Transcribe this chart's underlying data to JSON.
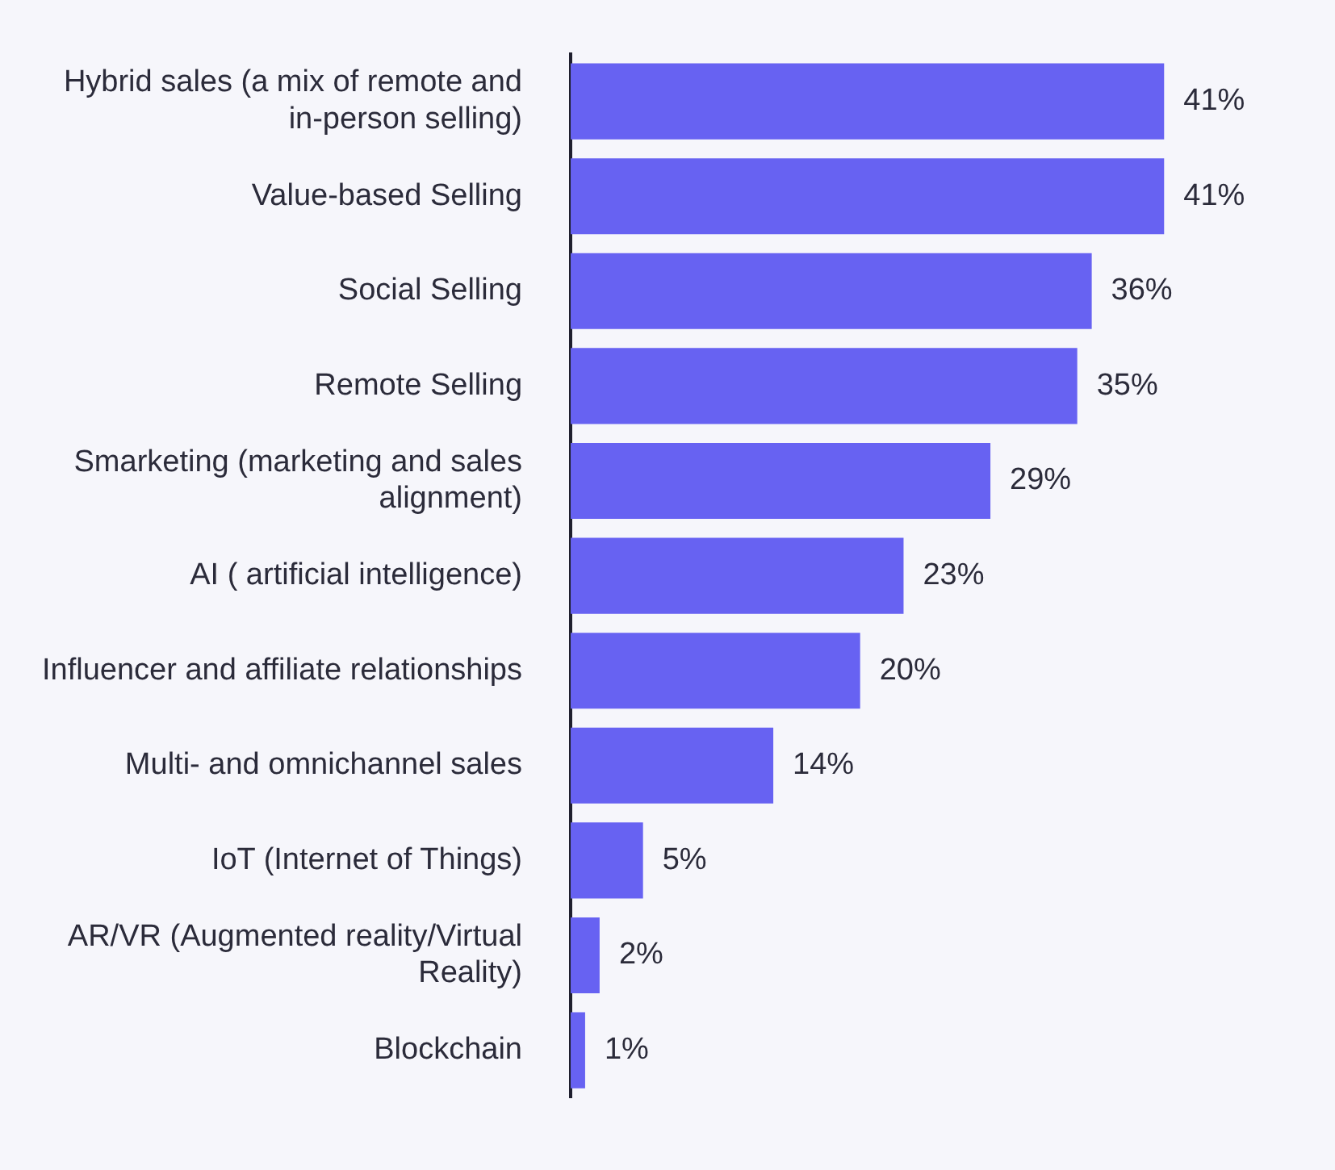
{
  "chart_data": {
    "type": "bar",
    "orientation": "horizontal",
    "categories": [
      "Hybrid sales (a mix of remote and in-person selling)",
      "Value-based Selling",
      "Social Selling",
      "Remote Selling",
      "Smarketing (marketing and sales alignment)",
      "AI ( artificial intelligence)",
      "Influencer and affiliate relationships",
      "Multi- and omnichannel sales",
      "IoT (Internet of Things)",
      "AR/VR (Augmented reality/Virtual Reality)",
      "Blockchain"
    ],
    "values": [
      41,
      41,
      36,
      35,
      29,
      23,
      20,
      14,
      5,
      2,
      1
    ],
    "value_labels": [
      "41%",
      "41%",
      "36%",
      "35%",
      "29%",
      "23%",
      "20%",
      "14%",
      "5%",
      "2%",
      "1%"
    ],
    "color": "#6762f2",
    "grid": false,
    "tick_labels": "y"
  }
}
